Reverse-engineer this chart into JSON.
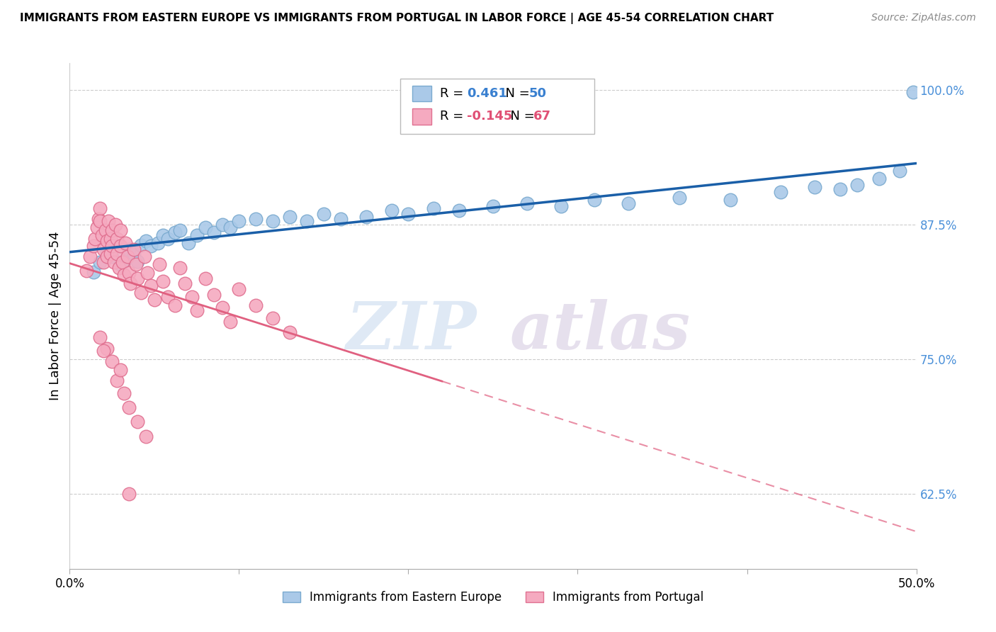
{
  "title": "IMMIGRANTS FROM EASTERN EUROPE VS IMMIGRANTS FROM PORTUGAL IN LABOR FORCE | AGE 45-54 CORRELATION CHART",
  "source": "Source: ZipAtlas.com",
  "xlabel_blue": "Immigrants from Eastern Europe",
  "xlabel_pink": "Immigrants from Portugal",
  "ylabel": "In Labor Force | Age 45-54",
  "xlim": [
    0.0,
    0.5
  ],
  "ylim": [
    0.555,
    1.025
  ],
  "yticks": [
    0.625,
    0.75,
    0.875,
    1.0
  ],
  "ytick_labels": [
    "62.5%",
    "75.0%",
    "87.5%",
    "100.0%"
  ],
  "xticks": [
    0.0,
    0.1,
    0.2,
    0.3,
    0.4,
    0.5
  ],
  "xtick_labels": [
    "0.0%",
    "",
    "",
    "",
    "",
    "50.0%"
  ],
  "R_blue": 0.461,
  "N_blue": 50,
  "R_pink": -0.145,
  "N_pink": 67,
  "blue_color": "#aac9e8",
  "blue_edge": "#7aaacf",
  "blue_line_color": "#1a5fa8",
  "pink_color": "#f5aac0",
  "pink_edge": "#e07090",
  "pink_line_color": "#e06080",
  "watermark_zip": "ZIP",
  "watermark_atlas": "atlas",
  "background_color": "#ffffff",
  "blue_scatter": [
    [
      0.014,
      0.831
    ],
    [
      0.018,
      0.84
    ],
    [
      0.022,
      0.85
    ],
    [
      0.025,
      0.845
    ],
    [
      0.028,
      0.855
    ],
    [
      0.03,
      0.838
    ],
    [
      0.033,
      0.843
    ],
    [
      0.035,
      0.852
    ],
    [
      0.038,
      0.848
    ],
    [
      0.04,
      0.841
    ],
    [
      0.042,
      0.856
    ],
    [
      0.045,
      0.86
    ],
    [
      0.048,
      0.855
    ],
    [
      0.052,
      0.858
    ],
    [
      0.055,
      0.865
    ],
    [
      0.058,
      0.862
    ],
    [
      0.062,
      0.868
    ],
    [
      0.065,
      0.87
    ],
    [
      0.07,
      0.858
    ],
    [
      0.075,
      0.865
    ],
    [
      0.08,
      0.872
    ],
    [
      0.085,
      0.868
    ],
    [
      0.09,
      0.875
    ],
    [
      0.095,
      0.872
    ],
    [
      0.1,
      0.878
    ],
    [
      0.11,
      0.88
    ],
    [
      0.12,
      0.878
    ],
    [
      0.13,
      0.882
    ],
    [
      0.14,
      0.878
    ],
    [
      0.15,
      0.885
    ],
    [
      0.16,
      0.88
    ],
    [
      0.175,
      0.882
    ],
    [
      0.19,
      0.888
    ],
    [
      0.2,
      0.885
    ],
    [
      0.215,
      0.89
    ],
    [
      0.23,
      0.888
    ],
    [
      0.25,
      0.892
    ],
    [
      0.27,
      0.895
    ],
    [
      0.29,
      0.892
    ],
    [
      0.31,
      0.898
    ],
    [
      0.33,
      0.895
    ],
    [
      0.36,
      0.9
    ],
    [
      0.39,
      0.898
    ],
    [
      0.42,
      0.905
    ],
    [
      0.44,
      0.91
    ],
    [
      0.455,
      0.908
    ],
    [
      0.465,
      0.912
    ],
    [
      0.478,
      0.918
    ],
    [
      0.49,
      0.925
    ],
    [
      0.498,
      0.998
    ]
  ],
  "pink_scatter": [
    [
      0.01,
      0.832
    ],
    [
      0.012,
      0.845
    ],
    [
      0.014,
      0.855
    ],
    [
      0.015,
      0.862
    ],
    [
      0.016,
      0.872
    ],
    [
      0.017,
      0.88
    ],
    [
      0.018,
      0.89
    ],
    [
      0.018,
      0.878
    ],
    [
      0.019,
      0.865
    ],
    [
      0.02,
      0.852
    ],
    [
      0.02,
      0.84
    ],
    [
      0.021,
      0.87
    ],
    [
      0.022,
      0.86
    ],
    [
      0.022,
      0.845
    ],
    [
      0.023,
      0.878
    ],
    [
      0.024,
      0.862
    ],
    [
      0.024,
      0.848
    ],
    [
      0.025,
      0.87
    ],
    [
      0.025,
      0.855
    ],
    [
      0.026,
      0.84
    ],
    [
      0.027,
      0.875
    ],
    [
      0.028,
      0.862
    ],
    [
      0.028,
      0.848
    ],
    [
      0.029,
      0.835
    ],
    [
      0.03,
      0.87
    ],
    [
      0.03,
      0.855
    ],
    [
      0.031,
      0.84
    ],
    [
      0.032,
      0.828
    ],
    [
      0.033,
      0.858
    ],
    [
      0.034,
      0.845
    ],
    [
      0.035,
      0.83
    ],
    [
      0.036,
      0.82
    ],
    [
      0.038,
      0.852
    ],
    [
      0.039,
      0.838
    ],
    [
      0.04,
      0.825
    ],
    [
      0.042,
      0.812
    ],
    [
      0.044,
      0.845
    ],
    [
      0.046,
      0.83
    ],
    [
      0.048,
      0.818
    ],
    [
      0.05,
      0.805
    ],
    [
      0.053,
      0.838
    ],
    [
      0.055,
      0.822
    ],
    [
      0.058,
      0.808
    ],
    [
      0.062,
      0.8
    ],
    [
      0.065,
      0.835
    ],
    [
      0.068,
      0.82
    ],
    [
      0.072,
      0.808
    ],
    [
      0.075,
      0.795
    ],
    [
      0.08,
      0.825
    ],
    [
      0.085,
      0.81
    ],
    [
      0.09,
      0.798
    ],
    [
      0.095,
      0.785
    ],
    [
      0.1,
      0.815
    ],
    [
      0.11,
      0.8
    ],
    [
      0.12,
      0.788
    ],
    [
      0.13,
      0.775
    ],
    [
      0.028,
      0.73
    ],
    [
      0.032,
      0.718
    ],
    [
      0.035,
      0.705
    ],
    [
      0.04,
      0.692
    ],
    [
      0.045,
      0.678
    ],
    [
      0.022,
      0.76
    ],
    [
      0.025,
      0.748
    ],
    [
      0.018,
      0.77
    ],
    [
      0.03,
      0.74
    ],
    [
      0.02,
      0.758
    ],
    [
      0.035,
      0.625
    ]
  ]
}
